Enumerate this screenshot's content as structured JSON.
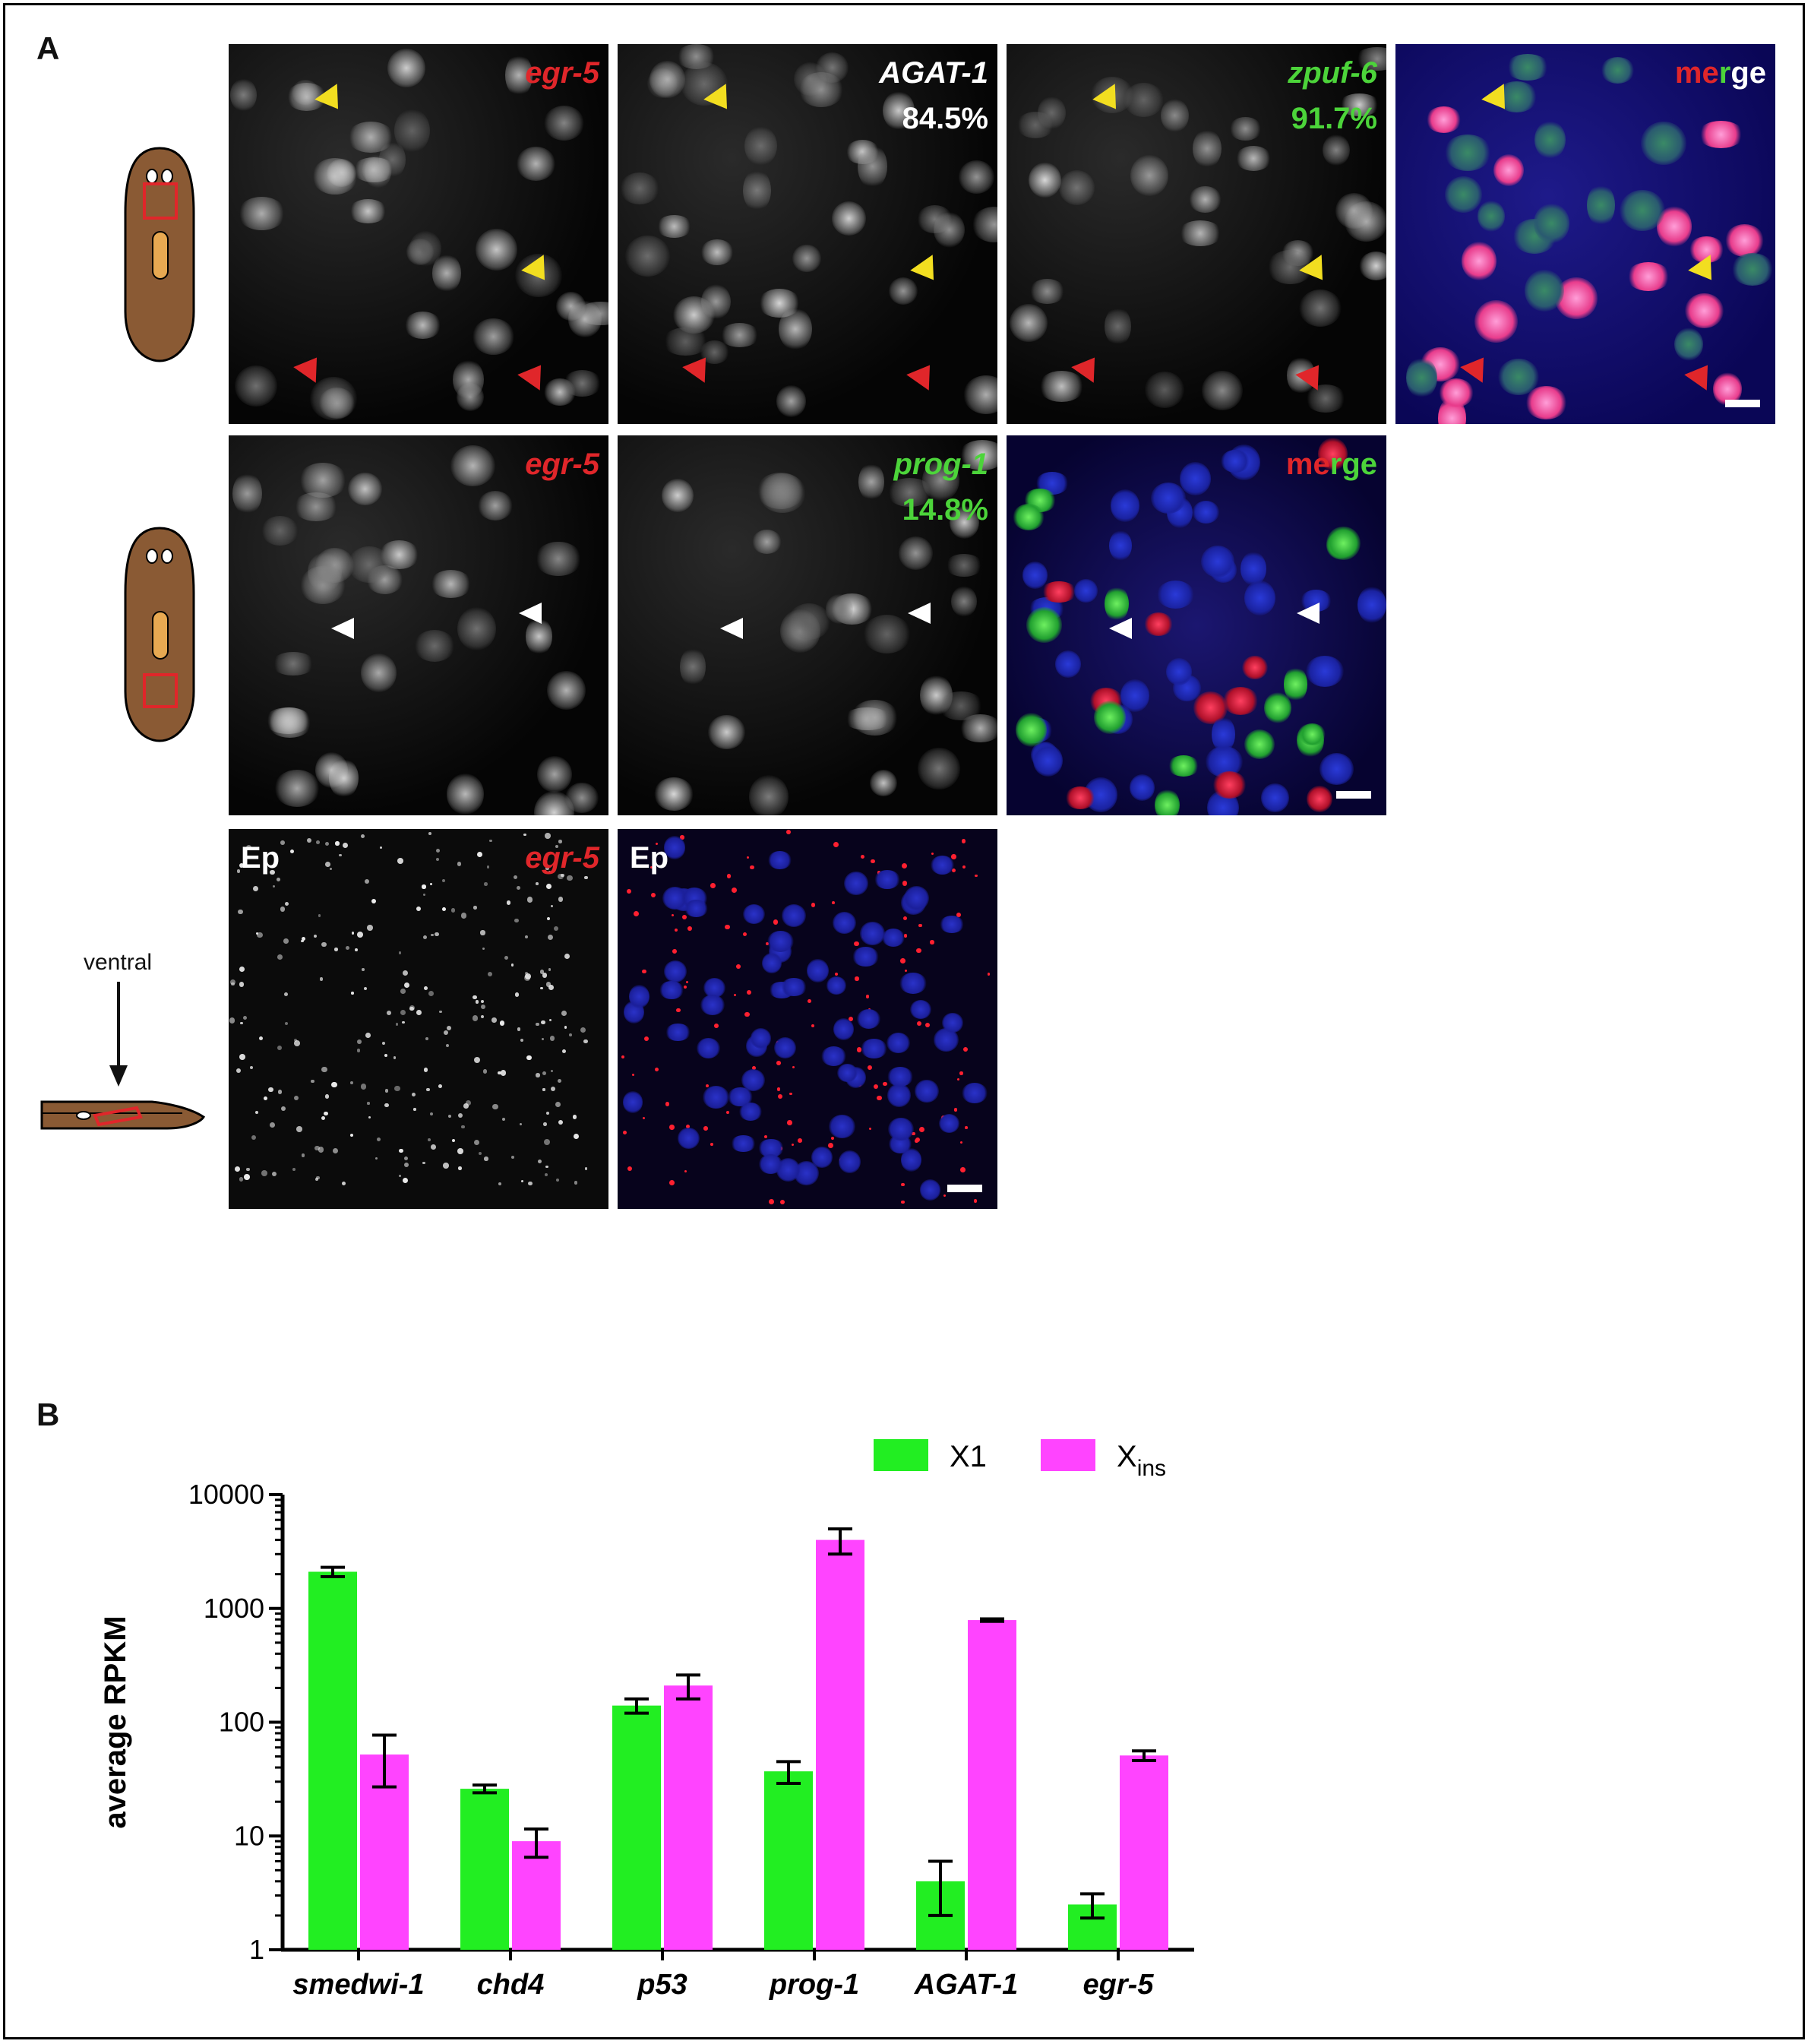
{
  "panel_a": {
    "letter": "A",
    "rows": [
      {
        "tiles": [
          {
            "label": "egr-5",
            "label_color": "#e0262a",
            "pct": ""
          },
          {
            "label": "AGAT-1",
            "label_color": "#ffffff",
            "pct": "84.5%",
            "pct_color": "#ffffff"
          },
          {
            "label": "zpuf-6",
            "label_color": "#4cd43a",
            "pct": "91.7%",
            "pct_color": "#4cd43a"
          },
          {
            "label": "merge",
            "label_color": "",
            "pct": ""
          }
        ]
      },
      {
        "tiles": [
          {
            "label": "egr-5",
            "label_color": "#e0262a",
            "pct": ""
          },
          {
            "label": "prog-1",
            "label_color": "#4cd43a",
            "pct": "14.8%",
            "pct_color": "#4cd43a"
          },
          {
            "label": "merge",
            "label_color": "",
            "pct": ""
          }
        ]
      },
      {
        "tiles": [
          {
            "label": "egr-5",
            "label_color": "#e0262a",
            "tag": "Ep"
          },
          {
            "label": "",
            "tag": "Ep"
          }
        ]
      }
    ],
    "merge_word": {
      "part1": "me",
      "part2": "r",
      "part3": "ge"
    },
    "ventral_label": "ventral"
  },
  "panel_b": {
    "letter": "B"
  },
  "chart_data": {
    "type": "bar",
    "ylabel": "average RPKM",
    "xlabel": "",
    "yscale": "log",
    "ylim": [
      1,
      10000
    ],
    "yticks": [
      "1",
      "10",
      "100",
      "1000",
      "10000"
    ],
    "categories": [
      "smedwi-1",
      "chd4",
      "p53",
      "prog-1",
      "AGAT-1",
      "egr-5"
    ],
    "series": [
      {
        "name": "X1",
        "color": "#22ee22",
        "values": [
          2100,
          26,
          140,
          37,
          4,
          2.5
        ],
        "errors": [
          200,
          2,
          20,
          8,
          2,
          0.6
        ]
      },
      {
        "name": "Xins",
        "color": "#ff44ff",
        "values": [
          52,
          9,
          210,
          4000,
          790,
          51
        ],
        "errors": [
          25,
          2.5,
          50,
          1000,
          20,
          5
        ]
      }
    ],
    "legend_position": "top-right"
  }
}
